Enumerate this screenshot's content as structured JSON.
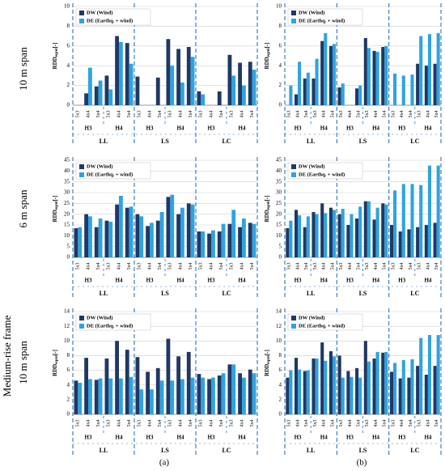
{
  "row_labels": [
    "10 m span",
    "6 m span",
    "10 m span"
  ],
  "frame_label": "Medium-rise frame",
  "panel_labels": [
    "(a)",
    "(b)"
  ],
  "chart_data": [
    {
      "type": "bar",
      "ylabel": "RDD",
      "ylabel_sub": "eqrel",
      "ylabel_unit": "[-]",
      "categories": [
        "5x3",
        "4x4",
        "5x4",
        "5x3",
        "4x4",
        "5x4",
        "5x3",
        "4x4",
        "5x4",
        "5x3",
        "4x4",
        "5x4",
        "5x3",
        "4x4",
        "5x4",
        "5x3",
        "4x4",
        "5x4"
      ],
      "subgroups": [
        "H3",
        "H4",
        "H3",
        "H4",
        "H3",
        "H4"
      ],
      "groups": [
        "LL",
        "LS",
        "LC"
      ],
      "series": [
        {
          "name": "DW (Wind)",
          "color": "#1f3864",
          "values": [
            0,
            1.2,
            1.9,
            3.0,
            7.0,
            6.3,
            2.9,
            0,
            2.8,
            6.7,
            5.7,
            5.9,
            1.4,
            0,
            1.4,
            5.1,
            4.3,
            4.4
          ]
        },
        {
          "name": "DE (Earthq. + wind)",
          "color": "#2ea3e0",
          "values": [
            0,
            3.8,
            2.5,
            1.6,
            6.4,
            4.2,
            0,
            0,
            0,
            4.0,
            2.3,
            4.9,
            1.1,
            0,
            0,
            3.0,
            2.0,
            3.6
          ]
        }
      ],
      "ylim": [
        0,
        10
      ],
      "yticks": [
        0,
        2,
        4,
        6,
        8,
        10
      ],
      "grid": true,
      "legend": "upper left"
    },
    {
      "type": "bar",
      "ylabel": "RDD",
      "ylabel_sub": "eqrel",
      "ylabel_unit": "[-]",
      "categories": [
        "5x3",
        "4x4",
        "5x4",
        "5x3",
        "4x4",
        "5x4",
        "5x3",
        "4x4",
        "5x4",
        "5x3",
        "4x4",
        "5x4",
        "5x3",
        "4x4",
        "5x4",
        "5x3",
        "4x4",
        "5x4"
      ],
      "subgroups": [
        "H3",
        "H4",
        "H3",
        "H4",
        "H3",
        "H4"
      ],
      "groups": [
        "LL",
        "LS",
        "LC"
      ],
      "series": [
        {
          "name": "DW (Wind)",
          "color": "#1f3864",
          "values": [
            0,
            1.1,
            2.7,
            2.7,
            6.5,
            6.0,
            1.8,
            0,
            1.7,
            6.8,
            5.5,
            5.9,
            0,
            0,
            0,
            4.2,
            4.0,
            4.2
          ]
        },
        {
          "name": "DE (Earthq. + wind)",
          "color": "#2ea3e0",
          "values": [
            2.0,
            4.4,
            3.3,
            4.7,
            7.3,
            6.2,
            2.2,
            0,
            2.0,
            5.8,
            5.4,
            6.0,
            3.2,
            3.0,
            3.1,
            7.0,
            7.2,
            7.3
          ]
        }
      ],
      "ylim": [
        0,
        10
      ],
      "yticks": [
        0,
        2,
        4,
        6,
        8,
        10
      ],
      "grid": true,
      "legend": "upper left"
    },
    {
      "type": "bar",
      "ylabel": "RDD",
      "ylabel_sub": "eqrel",
      "ylabel_unit": "[-]",
      "categories": [
        "5x3",
        "4x4",
        "5x4",
        "5x3",
        "4x4",
        "5x4",
        "5x3",
        "4x4",
        "5x4",
        "5x3",
        "4x4",
        "5x4",
        "5x3",
        "4x4",
        "5x4",
        "5x3",
        "4x4",
        "5x4"
      ],
      "subgroups": [
        "H3",
        "H4",
        "H3",
        "H4",
        "H3",
        "H4"
      ],
      "groups": [
        "LL",
        "LS",
        "LC"
      ],
      "series": [
        {
          "name": "DW (Wind)",
          "color": "#1f3864",
          "values": [
            13.5,
            20,
            14,
            17,
            24.5,
            23,
            20,
            14.5,
            17,
            28,
            20,
            25,
            12,
            11,
            12,
            15.5,
            14,
            16
          ]
        },
        {
          "name": "DE (Earthq. + wind)",
          "color": "#2ea3e0",
          "values": [
            14,
            19,
            18,
            16.5,
            28.5,
            23.5,
            19,
            16,
            21,
            29,
            23,
            24.5,
            12,
            12.5,
            15.5,
            22,
            18,
            15.5
          ]
        }
      ],
      "ylim": [
        0,
        45
      ],
      "yticks": [
        0,
        5,
        10,
        15,
        20,
        25,
        30,
        35,
        40,
        45
      ],
      "grid": true,
      "legend": "upper left"
    },
    {
      "type": "bar",
      "ylabel": "RDD",
      "ylabel_sub": "eqrel",
      "ylabel_unit": "[-]",
      "categories": [
        "5x3",
        "4x4",
        "5x4",
        "5x3",
        "4x4",
        "5x4",
        "5x3",
        "4x4",
        "5x4",
        "5x3",
        "4x4",
        "5x4",
        "5x3",
        "4x4",
        "5x4",
        "5x3",
        "4x4",
        "5x4"
      ],
      "subgroups": [
        "H3",
        "H4",
        "H3",
        "H4",
        "H3",
        "H4"
      ],
      "groups": [
        "LL",
        "LS",
        "LC"
      ],
      "series": [
        {
          "name": "DW (Wind)",
          "color": "#1f3864",
          "values": [
            13.5,
            22,
            14,
            21,
            25,
            23,
            20,
            15,
            18,
            26,
            17.5,
            25,
            15,
            12,
            13,
            14,
            15,
            16
          ]
        },
        {
          "name": "DE (Earthq. + wind)",
          "color": "#2ea3e0",
          "values": [
            17,
            19.5,
            19,
            20,
            20.5,
            22,
            22.5,
            20,
            23.5,
            26,
            23,
            24.5,
            31,
            34,
            34,
            33.5,
            42.5,
            42.5
          ]
        }
      ],
      "ylim": [
        0,
        45
      ],
      "yticks": [
        0,
        5,
        10,
        15,
        20,
        25,
        30,
        35,
        40,
        45
      ],
      "grid": true,
      "legend": "upper left"
    },
    {
      "type": "bar",
      "ylabel": "RDD",
      "ylabel_sub": "eqrel",
      "ylabel_unit": "[-]",
      "categories": [
        "5x3",
        "4x4",
        "5x4",
        "5x3",
        "4x4",
        "5x4",
        "5x3",
        "4x4",
        "5x4",
        "5x3",
        "4x4",
        "5x4",
        "5x3",
        "4x4",
        "5x4",
        "5x3",
        "4x4",
        "5x4"
      ],
      "subgroups": [
        "H3",
        "H4",
        "H3",
        "H4",
        "H3",
        "H4"
      ],
      "groups": [
        "LL",
        "LS",
        "LC"
      ],
      "series": [
        {
          "name": "DW (Wind)",
          "color": "#1f3864",
          "values": [
            4.6,
            7.7,
            4.7,
            7.6,
            10.0,
            8.8,
            7.8,
            5.8,
            6.3,
            10.3,
            7.9,
            8.5,
            5.5,
            4.8,
            5.3,
            6.8,
            5.6,
            6.1
          ]
        },
        {
          "name": "DE (Earthq. + wind)",
          "color": "#2ea3e0",
          "values": [
            4.3,
            4.8,
            4.9,
            4.9,
            4.9,
            5.1,
            3.4,
            3.4,
            4.6,
            4.6,
            4.8,
            5.0,
            5.0,
            5.0,
            5.6,
            6.8,
            5.0,
            5.6
          ]
        }
      ],
      "ylim": [
        0,
        14
      ],
      "yticks": [
        0,
        2,
        4,
        6,
        8,
        10,
        12,
        14
      ],
      "grid": true,
      "legend": "upper left"
    },
    {
      "type": "bar",
      "ylabel": "RDD",
      "ylabel_sub": "eqrel",
      "ylabel_unit": "[-]",
      "categories": [
        "5x3",
        "4x4",
        "5x4",
        "5x3",
        "4x4",
        "5x4",
        "5x3",
        "4x4",
        "5x4",
        "5x3",
        "4x4",
        "5x4",
        "5x3",
        "4x4",
        "5x4",
        "5x3",
        "4x4",
        "5x4"
      ],
      "subgroups": [
        "H3",
        "H4",
        "H3",
        "H4",
        "H3",
        "H4"
      ],
      "groups": [
        "LL",
        "LS",
        "LC"
      ],
      "series": [
        {
          "name": "DW (Wind)",
          "color": "#1f3864",
          "values": [
            5.0,
            7.7,
            5.9,
            7.6,
            9.8,
            8.6,
            8.0,
            5.9,
            6.3,
            10.0,
            7.6,
            8.4,
            5.8,
            4.9,
            5.0,
            6.6,
            5.4,
            6.6
          ]
        },
        {
          "name": "DE (Earthq. + wind)",
          "color": "#2ea3e0",
          "values": [
            6.0,
            6.1,
            6.0,
            7.6,
            7.3,
            7.9,
            5.0,
            5.1,
            5.0,
            7.2,
            8.5,
            8.5,
            7.0,
            7.4,
            7.5,
            10.4,
            10.8,
            10.8
          ]
        }
      ],
      "ylim": [
        0,
        14
      ],
      "yticks": [
        0,
        2,
        4,
        6,
        8,
        10,
        12,
        14
      ],
      "grid": true,
      "legend": "upper left"
    }
  ]
}
